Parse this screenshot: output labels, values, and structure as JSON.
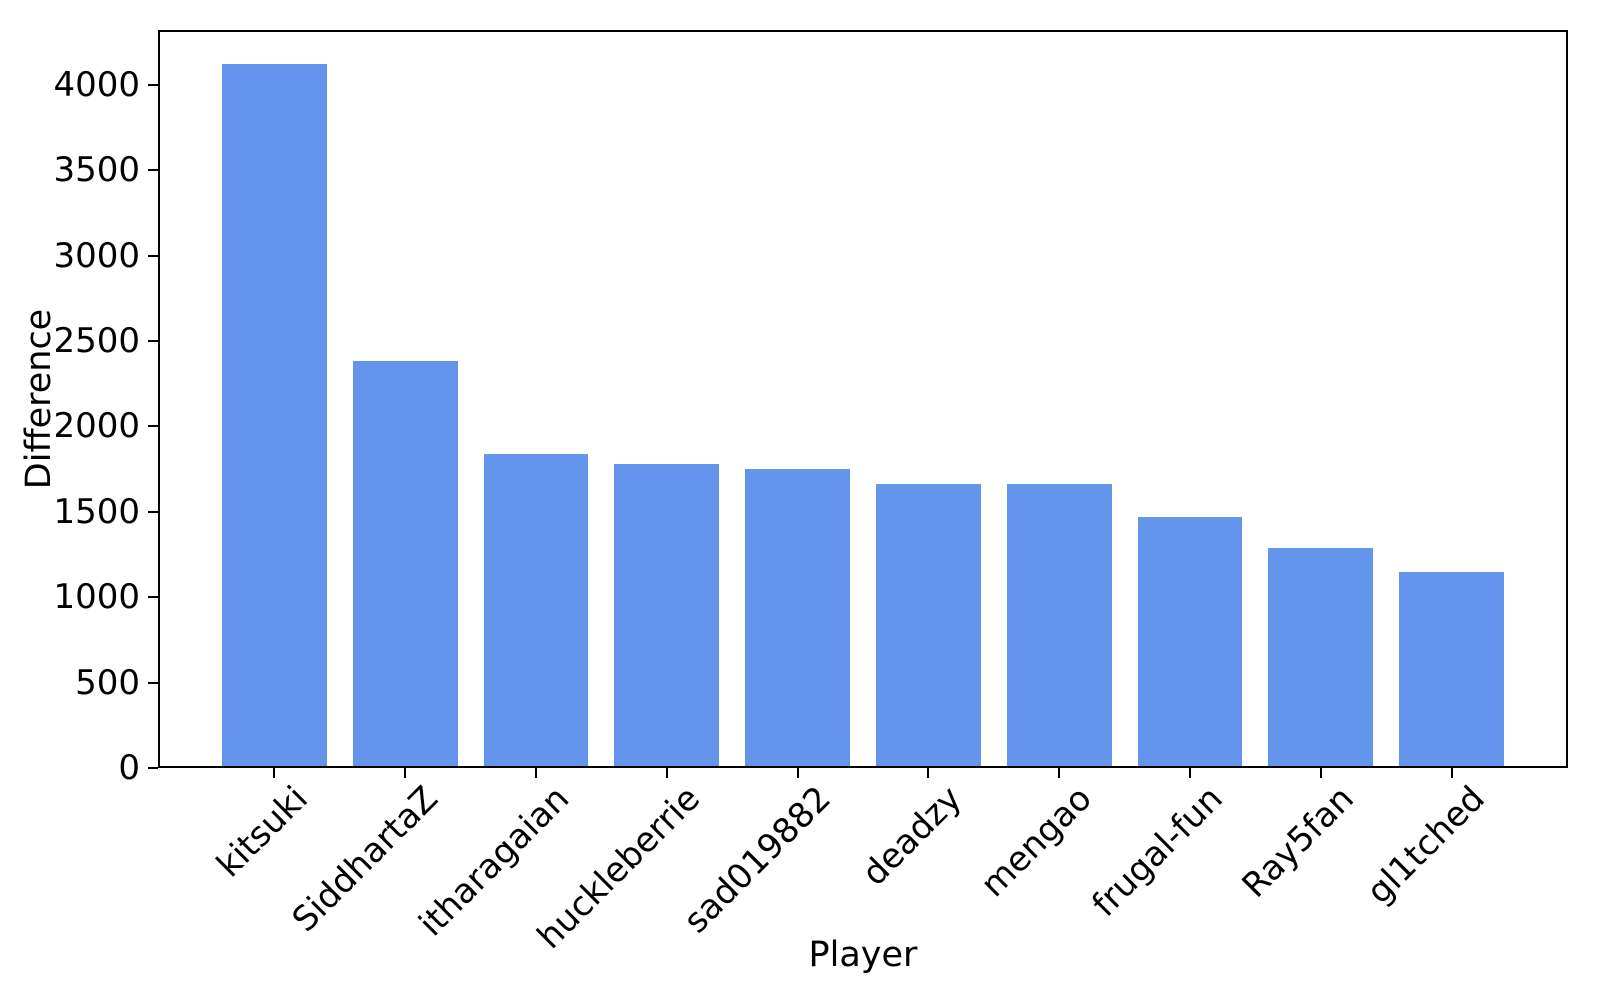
{
  "figure": {
    "background": "#ffffff",
    "axis_color": "#000000",
    "text_color": "#000000"
  },
  "chart_data": {
    "type": "bar",
    "title": "",
    "xlabel": "Player",
    "ylabel": "Difference",
    "categories": [
      "kitsuki",
      "SiddhartaZ",
      "itharagaian",
      "huckleberrie",
      "sad019882",
      "deadzy",
      "mengao",
      "frugal-fun",
      "Ray5fan",
      "gl1tched"
    ],
    "values": [
      4120,
      2380,
      1840,
      1780,
      1750,
      1665,
      1665,
      1470,
      1285,
      1150
    ],
    "bar_color": "#6495ed",
    "yticks": [
      0,
      500,
      1000,
      1500,
      2000,
      2500,
      3000,
      3500,
      4000
    ],
    "ylim": [
      0,
      4320
    ],
    "xlim": [
      -0.89,
      9.89
    ],
    "bar_width": 0.8,
    "grid": false,
    "legend": null,
    "x_tick_rotation": -45
  }
}
